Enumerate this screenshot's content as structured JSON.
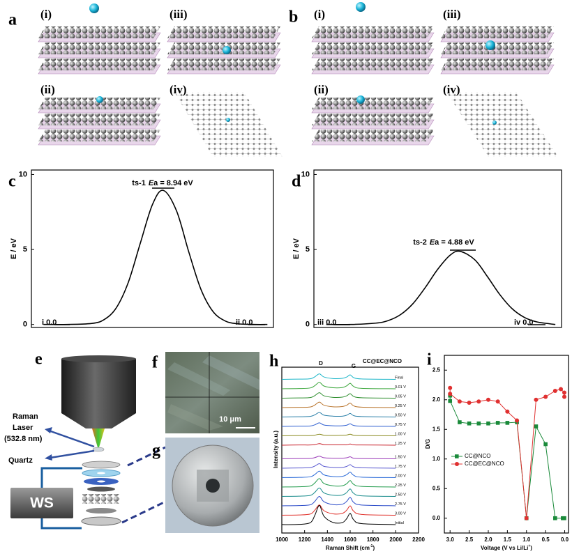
{
  "panel_labels": [
    "a",
    "b",
    "c",
    "d",
    "e",
    "f",
    "g",
    "h",
    "i"
  ],
  "panel_a": {
    "sub_labels": [
      "(i)",
      "(iii)",
      "(ii)",
      "(iv)"
    ]
  },
  "panel_b": {
    "sub_labels": [
      "(i)",
      "(iii)",
      "(ii)",
      "(iv)"
    ]
  },
  "panel_e": {
    "laser_label": [
      "Raman",
      "Laser",
      "(532.8 nm)"
    ],
    "quartz_label": "Quartz",
    "device_label": "WS"
  },
  "panel_f": {
    "scale_bar": "10 μm"
  },
  "chart_data": [
    {
      "type": "line",
      "ylabel": "E / eV",
      "color": "#000000",
      "x": [
        1,
        3,
        5,
        6,
        7,
        8,
        9,
        10,
        10.9,
        12,
        13,
        14,
        15,
        16,
        17,
        18.5,
        19.5
      ],
      "values": [
        0,
        0,
        0.07,
        0.32,
        1.09,
        2.79,
        5.42,
        7.99,
        8.94,
        7.56,
        4.85,
        2.36,
        0.87,
        0.24,
        0.05,
        0,
        0
      ],
      "xlim": [
        0,
        20
      ],
      "ylim": [
        -0.2,
        10.3
      ],
      "yticks": [
        0,
        5,
        10
      ],
      "annotations": [
        {
          "parts": [
            "ts-1",
            "E",
            "a = 8.94 eV"
          ]
        },
        {
          "text": "i 0.0"
        },
        {
          "text": "ii 0.0"
        }
      ]
    },
    {
      "type": "line",
      "ylabel": "E / eV",
      "color": "#000000",
      "x": [
        1,
        3,
        5,
        6,
        7,
        8,
        9,
        10,
        11,
        11.8,
        13,
        14,
        15,
        16,
        17,
        18,
        19,
        19.5
      ],
      "values": [
        0,
        0,
        0.09,
        0.26,
        0.66,
        1.39,
        2.47,
        3.68,
        4.62,
        4.88,
        4.31,
        3.21,
        2.01,
        1.06,
        0.47,
        0.17,
        0.05,
        0
      ],
      "xlim": [
        0,
        20
      ],
      "ylim": [
        -0.2,
        10.3
      ],
      "yticks": [
        0,
        5,
        10
      ],
      "annotations": [
        {
          "parts": [
            "ts-2",
            "E",
            "a = 4.88 eV"
          ]
        },
        {
          "text": "iii 0.0"
        },
        {
          "text": "iv 0.0"
        }
      ]
    },
    {
      "type": "line",
      "title": "CC@EC@NCO",
      "ylabel": "Intensity (a.u.)",
      "xlabel": [
        "Raman Shift (cm",
        "-1",
        ")"
      ],
      "xlim": [
        1000,
        2200
      ],
      "xticks": [
        1000,
        1200,
        1400,
        1600,
        1800,
        2000,
        2200
      ],
      "annotations": [
        {
          "text": "D"
        },
        {
          "text": "G"
        }
      ],
      "x": [
        1000,
        1150,
        1250,
        1290,
        1330,
        1370,
        1450,
        1530,
        1570,
        1600,
        1630,
        1700,
        2000
      ],
      "series": [
        {
          "name": "Final",
          "color": "#19b5c8",
          "values": [
            0.02,
            0.03,
            0.05,
            0.15,
            0.3,
            0.14,
            0.06,
            0.07,
            0.14,
            0.25,
            0.11,
            0.04,
            0.02
          ]
        },
        {
          "name": "0.01 V",
          "color": "#3aa63a",
          "values": [
            0.02,
            0.03,
            0.06,
            0.18,
            0.35,
            0.16,
            0.07,
            0.08,
            0.17,
            0.3,
            0.14,
            0.04,
            0.02
          ]
        },
        {
          "name": "0.05 V",
          "color": "#2f8f2f",
          "values": [
            0.02,
            0.03,
            0.05,
            0.15,
            0.3,
            0.14,
            0.06,
            0.07,
            0.14,
            0.25,
            0.11,
            0.04,
            0.02
          ]
        },
        {
          "name": "0.25 V",
          "color": "#b8732a",
          "values": [
            0.02,
            0.03,
            0.05,
            0.15,
            0.3,
            0.14,
            0.06,
            0.07,
            0.14,
            0.25,
            0.11,
            0.04,
            0.02
          ]
        },
        {
          "name": "0.50 V",
          "color": "#2a7fa8",
          "values": [
            0.02,
            0.03,
            0.05,
            0.13,
            0.25,
            0.11,
            0.06,
            0.06,
            0.11,
            0.2,
            0.09,
            0.04,
            0.02
          ]
        },
        {
          "name": "0.75 V",
          "color": "#2f5fd0",
          "values": [
            0.02,
            0.03,
            0.04,
            0.1,
            0.2,
            0.09,
            0.05,
            0.05,
            0.08,
            0.15,
            0.07,
            0.03,
            0.02
          ]
        },
        {
          "name": "1.00 V",
          "color": "#8a8a20",
          "values": [
            0.02,
            0.03,
            0.03,
            0.05,
            0.1,
            0.05,
            0.04,
            0.05,
            0.06,
            0.1,
            0.05,
            0.03,
            0.02
          ]
        },
        {
          "name": "1.25 V",
          "color": "#c8202a",
          "values": [
            0.02,
            0.03,
            0.03,
            0.05,
            0.1,
            0.05,
            0.04,
            0.04,
            0.04,
            0.08,
            0.04,
            0.03,
            0.02
          ]
        },
        {
          "name": "1.50 V",
          "color": "#9a3ab8",
          "values": [
            0.02,
            0.03,
            0.04,
            0.08,
            0.15,
            0.07,
            0.05,
            0.05,
            0.07,
            0.12,
            0.05,
            0.03,
            0.02
          ]
        },
        {
          "name": "1.75 V",
          "color": "#5a5ad0",
          "values": [
            0.02,
            0.03,
            0.05,
            0.13,
            0.25,
            0.11,
            0.06,
            0.06,
            0.11,
            0.2,
            0.09,
            0.04,
            0.02
          ]
        },
        {
          "name": "2.00 V",
          "color": "#2a6ad8",
          "values": [
            0.02,
            0.03,
            0.06,
            0.18,
            0.35,
            0.16,
            0.07,
            0.08,
            0.17,
            0.3,
            0.14,
            0.04,
            0.02
          ]
        },
        {
          "name": "2.25 V",
          "color": "#1f9a4a",
          "values": [
            0.02,
            0.03,
            0.07,
            0.23,
            0.45,
            0.2,
            0.08,
            0.08,
            0.19,
            0.35,
            0.16,
            0.05,
            0.02
          ]
        },
        {
          "name": "2.50 V",
          "color": "#168a8a",
          "values": [
            0.02,
            0.03,
            0.07,
            0.23,
            0.45,
            0.2,
            0.08,
            0.09,
            0.22,
            0.4,
            0.18,
            0.05,
            0.02
          ]
        },
        {
          "name": "2.75 V",
          "color": "#2a4ac8",
          "values": [
            0.02,
            0.03,
            0.07,
            0.25,
            0.5,
            0.23,
            0.08,
            0.1,
            0.25,
            0.45,
            0.2,
            0.06,
            0.02
          ]
        },
        {
          "name": "3.00 V",
          "color": "#e0302a",
          "values": [
            0.02,
            0.03,
            0.08,
            0.28,
            0.55,
            0.25,
            0.09,
            0.11,
            0.28,
            0.5,
            0.23,
            0.06,
            0.02
          ]
        },
        {
          "name": "Initial",
          "color": "#000000",
          "values": [
            0.02,
            0.03,
            0.12,
            0.5,
            1.0,
            0.45,
            0.13,
            0.12,
            0.33,
            0.6,
            0.27,
            0.07,
            0.02
          ]
        }
      ]
    },
    {
      "type": "line",
      "ylabel": "D/G",
      "xlabel": [
        "Voltage (V vs Li/Li",
        "+",
        ")"
      ],
      "legend": "lower left",
      "xlim": [
        3.15,
        -0.1
      ],
      "xticks": [
        {
          "value": 3,
          "label": "3.0"
        },
        {
          "value": 2.5,
          "label": "2.5"
        },
        {
          "value": 2,
          "label": "2.0"
        },
        {
          "value": 1.5,
          "label": "1.5"
        },
        {
          "value": 1,
          "label": "1.0"
        },
        {
          "value": 0.5,
          "label": "0.5"
        },
        {
          "value": 0,
          "label": "0.0"
        }
      ],
      "ylim": [
        -0.25,
        2.75
      ],
      "yticks": [
        {
          "value": 0,
          "label": "0.0"
        },
        {
          "value": 0.5,
          "label": "0.5"
        },
        {
          "value": 1,
          "label": "1.0"
        },
        {
          "value": 1.5,
          "label": "1.5"
        },
        {
          "value": 2,
          "label": "2.0"
        },
        {
          "value": 2.5,
          "label": "2.5"
        }
      ],
      "series": [
        {
          "name": "CC@NCO",
          "color": "#1a8a3a",
          "marker": "square",
          "x": [
            3.0,
            3.0,
            2.75,
            2.5,
            2.25,
            2.0,
            1.75,
            1.5,
            1.25,
            1.0,
            0.75,
            0.5,
            0.25,
            0.05,
            0.01
          ],
          "values": [
            2.07,
            1.98,
            1.62,
            1.6,
            1.6,
            1.6,
            1.61,
            1.61,
            1.62,
            0.0,
            1.55,
            1.25,
            0.0,
            0.0,
            0.0
          ]
        },
        {
          "name": "CC@EC@NCO",
          "color": "#e03030",
          "marker": "circle",
          "x": [
            3.0,
            3.0,
            2.75,
            2.5,
            2.25,
            2.0,
            1.75,
            1.5,
            1.25,
            1.0,
            0.75,
            0.5,
            0.25,
            0.1,
            0.01,
            0.01
          ],
          "values": [
            2.2,
            2.1,
            1.97,
            1.95,
            1.97,
            2.0,
            1.97,
            1.8,
            1.65,
            0.0,
            2.0,
            2.05,
            2.15,
            2.18,
            2.12,
            2.05
          ]
        }
      ]
    }
  ]
}
